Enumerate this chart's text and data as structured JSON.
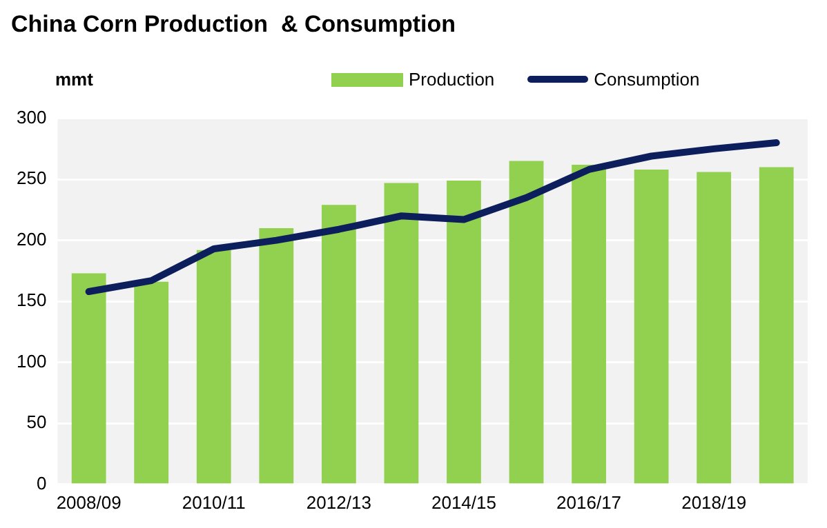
{
  "chart_data": {
    "type": "bar",
    "title": "China Corn Production  & Consumption",
    "ylabel": "mmt",
    "categories": [
      "2008/09",
      null,
      "2010/11",
      null,
      "2012/13",
      null,
      "2014/15",
      null,
      "2016/17",
      null,
      "2018/19",
      null
    ],
    "series": [
      {
        "name": "Production",
        "color": "#92d050",
        "values": [
          173,
          166,
          192,
          210,
          229,
          247,
          249,
          265,
          262,
          258,
          256,
          260
        ]
      },
      {
        "name": "Consumption",
        "type": "line",
        "color": "#0c1f5c",
        "values": [
          158,
          167,
          193,
          200,
          209,
          220,
          217,
          235,
          258,
          269,
          275,
          280
        ]
      }
    ],
    "ylim": [
      0,
      300
    ],
    "yticks": [
      0,
      50,
      100,
      150,
      200,
      250,
      300
    ],
    "grid": "y",
    "legend": "top right",
    "marker": "none",
    "line_style": "solid"
  }
}
